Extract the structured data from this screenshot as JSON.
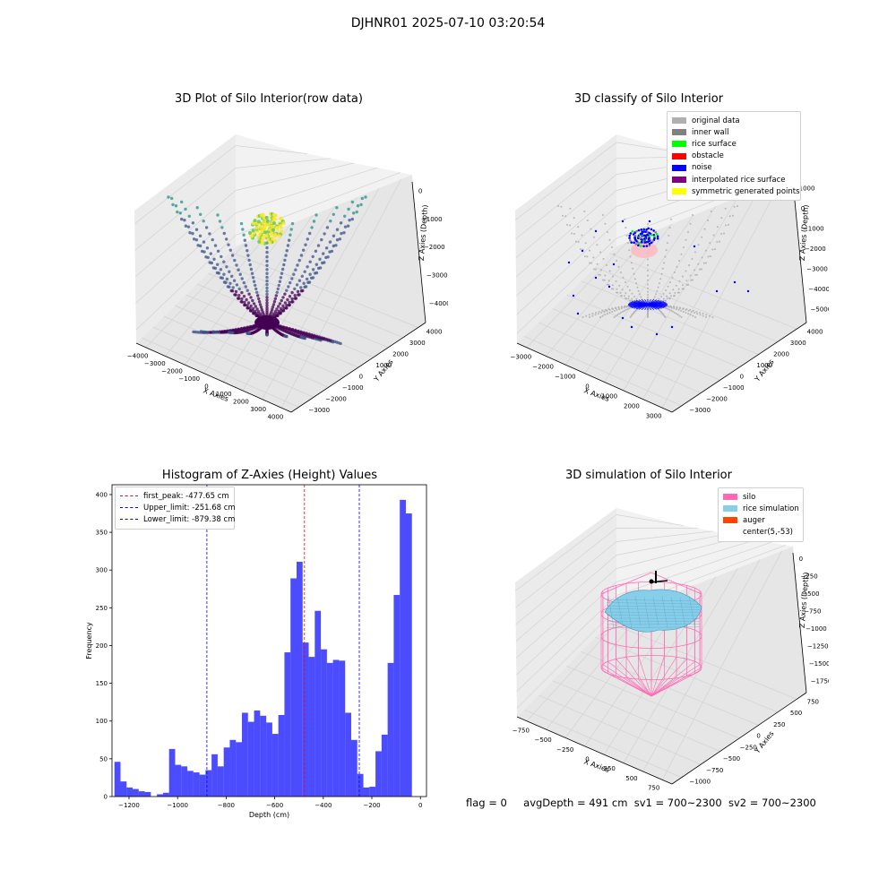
{
  "figure": {
    "suptitle": "DJHNR01 2025-07-10 03:20:54",
    "footer": {
      "flag": "flag = 0",
      "avg_depth": "avgDepth = 491 cm",
      "sv1": "sv1 = 700~2300",
      "sv2": "sv2 = 700~2300"
    }
  },
  "panels": {
    "raw": {
      "title": "3D Plot of Silo Interior(row data)",
      "xlabel": "X Axies",
      "ylabel": "Y Axies",
      "zlabel": "Z Axies (Depth)",
      "xticks": [
        "−4000",
        "−3000",
        "−2000",
        "−1000",
        "0",
        "1000",
        "2000",
        "3000",
        "4000"
      ],
      "yticks": [
        "−3000",
        "−2000",
        "−1000",
        "0",
        "1000",
        "2000",
        "3000",
        "4000"
      ],
      "zticks": [
        "0",
        "−1000",
        "−2000",
        "−3000",
        "−4000"
      ],
      "colormap": [
        "#440154",
        "#3b528b",
        "#21918c",
        "#5ec962",
        "#fde725"
      ]
    },
    "classify": {
      "title": "3D classify of Silo Interior",
      "xlabel": "X Axies",
      "ylabel": "Y Axies",
      "zlabel": "Z Axies (Depth)",
      "xticks": [
        "−3000",
        "−2000",
        "−1000",
        "0",
        "1000",
        "2000",
        "3000"
      ],
      "yticks": [
        "−3000",
        "−2000",
        "−1000",
        "0",
        "1000",
        "2000",
        "3000",
        "4000"
      ],
      "zticks": [
        "1000",
        "0",
        "−1000",
        "−2000",
        "−3000",
        "−4000",
        "−5000"
      ],
      "legend": [
        {
          "label": "original data",
          "color": "#b0b0b0"
        },
        {
          "label": "inner wall",
          "color": "#808080"
        },
        {
          "label": "rice surface",
          "color": "#00ff00"
        },
        {
          "label": "obstacle",
          "color": "#ff0000"
        },
        {
          "label": "noise",
          "color": "#0000ff"
        },
        {
          "label": "interpolated rice surface",
          "color": "#800080"
        },
        {
          "label": "symmetric generated points",
          "color": "#ffff00"
        }
      ]
    },
    "simulation": {
      "title": "3D simulation of Silo Interior",
      "xlabel": "X Axies",
      "ylabel": "Y Axies",
      "zlabel": "Z Axies (Depth)",
      "xticks": [
        "−750",
        "−500",
        "−250",
        "0",
        "250",
        "500",
        "750"
      ],
      "yticks": [
        "−1000",
        "−750",
        "−500",
        "−250",
        "0",
        "250",
        "500",
        "750"
      ],
      "zticks": [
        "0",
        "−250",
        "−500",
        "−750",
        "−1000",
        "−1250",
        "−1500",
        "−1750"
      ],
      "legend": [
        {
          "label": "silo",
          "color": "#ff69b4"
        },
        {
          "label": "rice simulation",
          "color": "#87ceeb"
        },
        {
          "label": "auger",
          "color": "#ff4500"
        },
        {
          "label": "center(5,-53)",
          "color": ""
        }
      ]
    }
  },
  "chart_data": [
    {
      "type": "scatter",
      "title": "3D Plot of Silo Interior(row data)",
      "xlabel": "X Axies",
      "ylabel": "Y Axies",
      "zlabel": "Z Axies (Depth)",
      "xlim": [
        -4000,
        4000
      ],
      "ylim": [
        -3000,
        4000
      ],
      "zlim": [
        -4500,
        0
      ],
      "grid": true
    },
    {
      "type": "scatter",
      "title": "3D classify of Silo Interior",
      "xlabel": "X Axies",
      "ylabel": "Y Axies",
      "zlabel": "Z Axies (Depth)",
      "xlim": [
        -3000,
        3000
      ],
      "ylim": [
        -3000,
        4000
      ],
      "zlim": [
        -5500,
        1000
      ],
      "legend_position": "top-right",
      "series": [
        {
          "name": "original data",
          "color": "#b0b0b0"
        },
        {
          "name": "inner wall",
          "color": "#808080"
        },
        {
          "name": "rice surface",
          "color": "#00ff00"
        },
        {
          "name": "obstacle",
          "color": "#ff0000"
        },
        {
          "name": "noise",
          "color": "#0000ff"
        },
        {
          "name": "interpolated rice surface",
          "color": "#800080"
        },
        {
          "name": "symmetric generated points",
          "color": "#ffff00"
        }
      ]
    },
    {
      "type": "bar",
      "title": "Histogram of Z-Axies (Height) Values",
      "xlabel": "Depth (cm)",
      "ylabel": "Frequency",
      "xlim": [
        -1270,
        25
      ],
      "ylim": [
        0,
        413
      ],
      "bar_color": "#0000ff",
      "bin_start": -1260,
      "bin_width": 25,
      "values": [
        46,
        20,
        12,
        10,
        7,
        6,
        0,
        3,
        5,
        63,
        42,
        40,
        34,
        32,
        29,
        35,
        56,
        40,
        65,
        75,
        72,
        111,
        99,
        114,
        107,
        98,
        83,
        108,
        191,
        289,
        311,
        204,
        185,
        246,
        195,
        177,
        181,
        180,
        111,
        75,
        30,
        12,
        13,
        60,
        82,
        177,
        267,
        393,
        375
      ],
      "xticks": [
        -1200,
        -1000,
        -800,
        -600,
        -400,
        -200,
        0
      ],
      "yticks": [
        0,
        50,
        100,
        150,
        200,
        250,
        300,
        350,
        400
      ],
      "xtick_labels": [
        "−1200",
        "−1000",
        "−800",
        "−600",
        "−400",
        "−200",
        "0"
      ],
      "vlines": [
        {
          "label": "first_peak: -477.65 cm",
          "x": -477.65,
          "color": "#ff0000"
        },
        {
          "label": "Upper_limit: -251.68 cm",
          "x": -251.68,
          "color": "#0000ff"
        },
        {
          "label": "Lower_limit: -879.38 cm",
          "x": -879.38,
          "color": "#0000ff"
        }
      ],
      "legend_position": "top-left",
      "grid": false
    },
    {
      "type": "surface",
      "title": "3D simulation of Silo Interior",
      "xlabel": "X Axies",
      "ylabel": "Y Axies",
      "zlabel": "Z Axies (Depth)",
      "xlim": [
        -900,
        900
      ],
      "ylim": [
        -1000,
        800
      ],
      "zlim": [
        -1800,
        100
      ],
      "legend_position": "top-right",
      "series": [
        {
          "name": "silo",
          "color": "#ff69b4"
        },
        {
          "name": "rice simulation",
          "color": "#87ceeb"
        },
        {
          "name": "auger",
          "color": "#ff4500"
        },
        {
          "name": "center(5,-53)"
        }
      ]
    }
  ]
}
